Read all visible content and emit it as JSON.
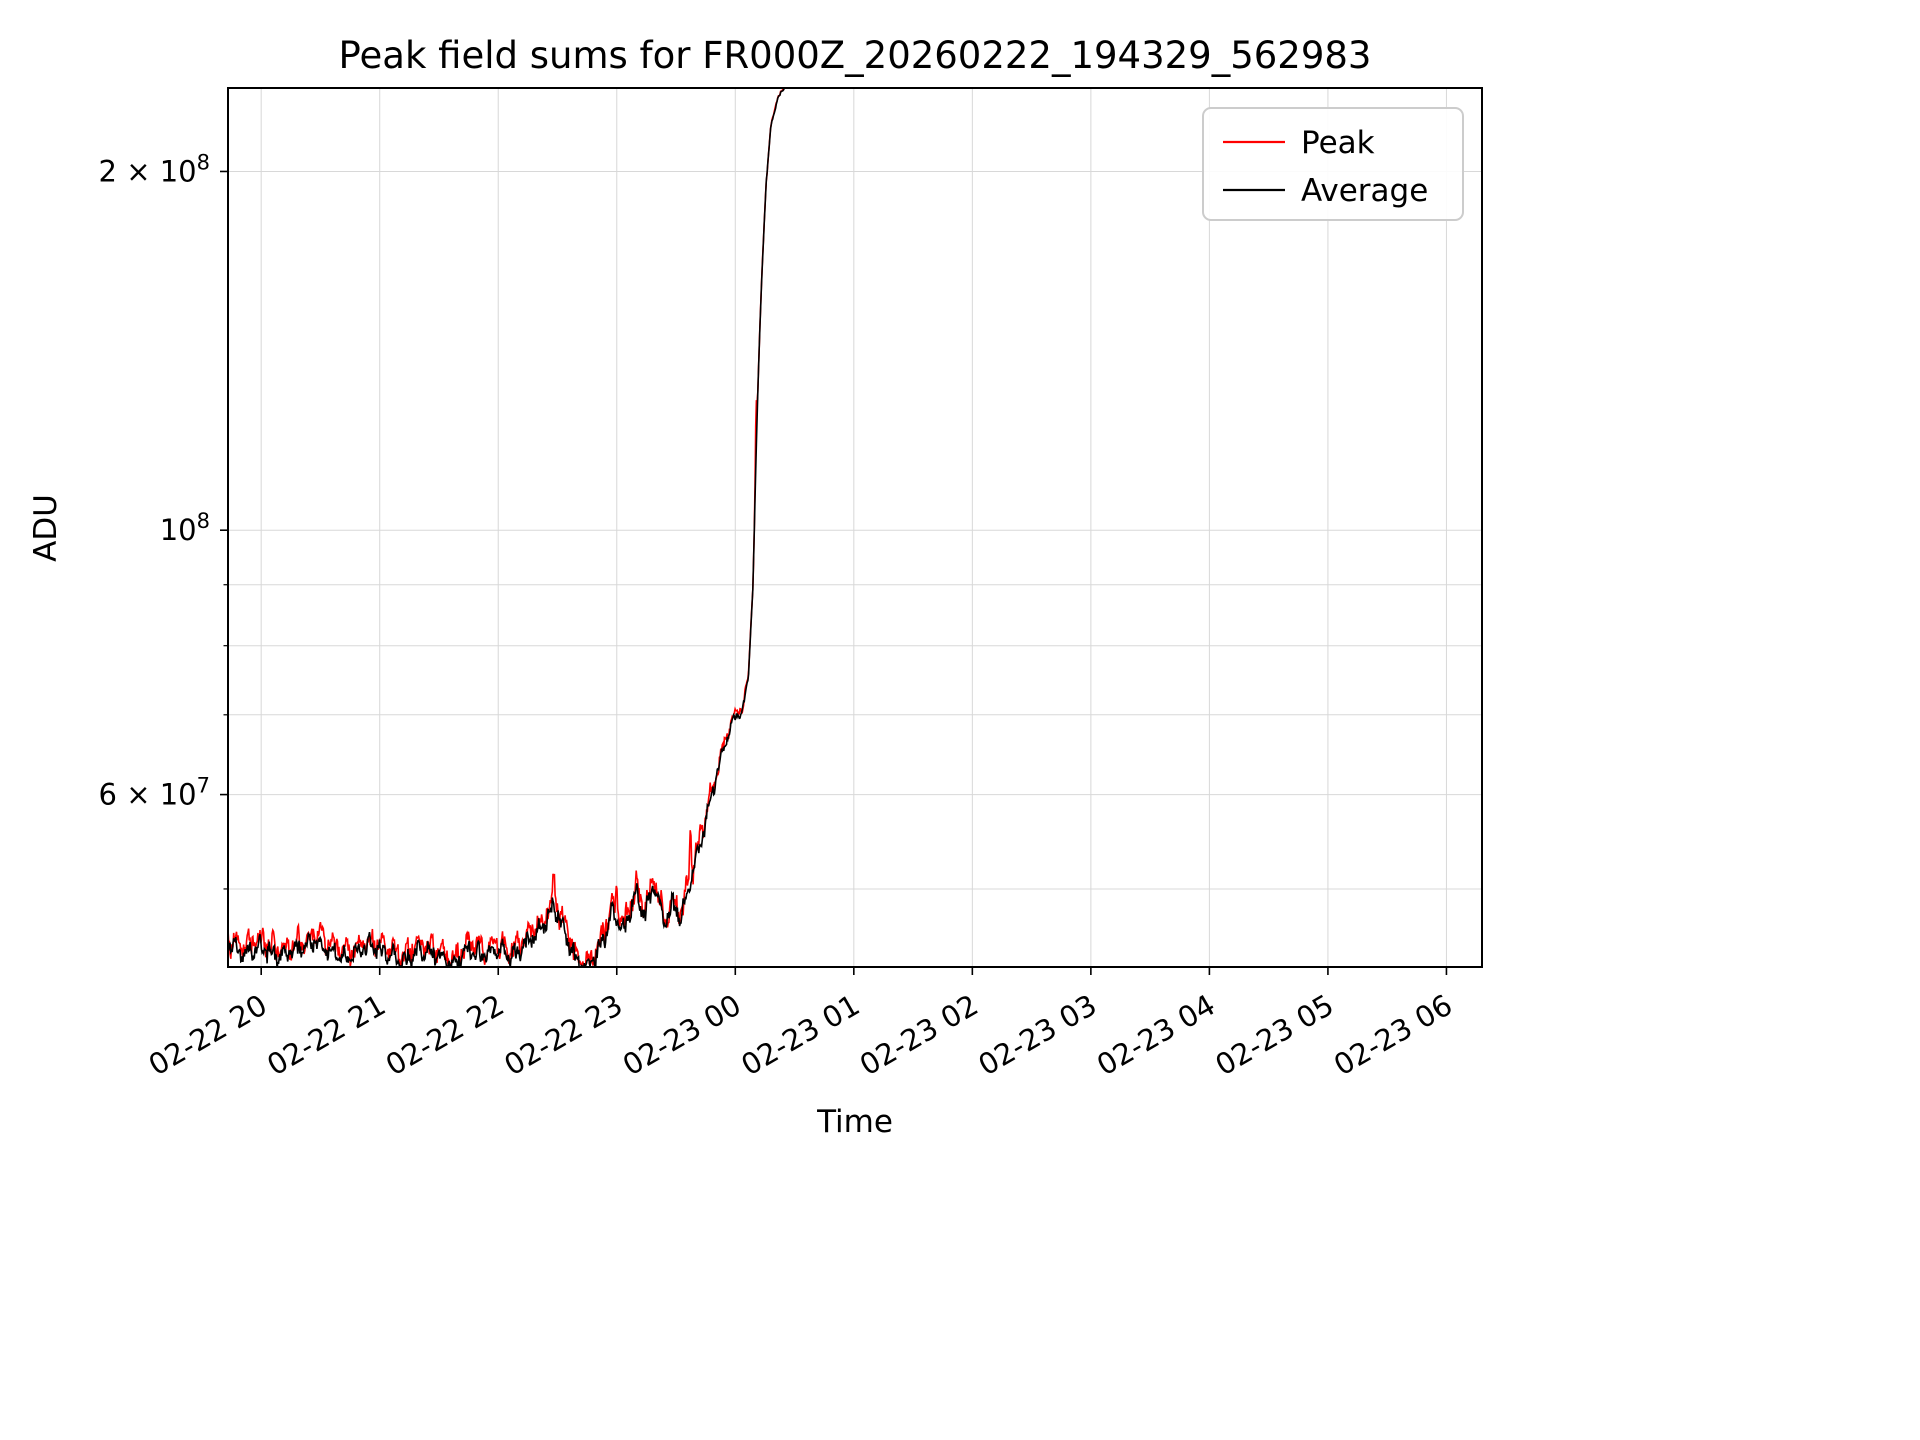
{
  "page": {
    "background": "#ffffff"
  },
  "chart_data": {
    "type": "line",
    "title": "Peak field sums for FR000Z_20260222_194329_562983",
    "xlabel": "Time",
    "ylabel": "ADU",
    "x_axis": {
      "lim": [
        19.72,
        30.3
      ],
      "ticks": [
        {
          "value": 20,
          "label": "02-22 20"
        },
        {
          "value": 21,
          "label": "02-22 21"
        },
        {
          "value": 22,
          "label": "02-22 22"
        },
        {
          "value": 23,
          "label": "02-22 23"
        },
        {
          "value": 24,
          "label": "02-23 00"
        },
        {
          "value": 25,
          "label": "02-23 01"
        },
        {
          "value": 26,
          "label": "02-23 02"
        },
        {
          "value": 27,
          "label": "02-23 03"
        },
        {
          "value": 28,
          "label": "02-23 04"
        },
        {
          "value": 29,
          "label": "02-23 05"
        },
        {
          "value": 30,
          "label": "02-23 06"
        }
      ]
    },
    "y_axis": {
      "scale": "log",
      "lim": [
        43000000.0,
        235000000.0
      ],
      "major_ticks": [
        {
          "value": 60000000.0,
          "mantissa": "6 × 10",
          "exp": "7"
        },
        {
          "value": 100000000.0,
          "mantissa": "10",
          "exp": "8"
        },
        {
          "value": 200000000.0,
          "mantissa": "2 × 10",
          "exp": "8"
        }
      ],
      "minor_ticks": [
        50000000.0,
        70000000.0,
        80000000.0,
        90000000.0
      ]
    },
    "grid": {
      "color": "#d8d8d8"
    },
    "legend": {
      "entries": [
        {
          "label": "Peak",
          "color": "#ff0000"
        },
        {
          "label": "Average",
          "color": "#000000"
        }
      ]
    },
    "series": {
      "average": {
        "name": "Average",
        "color": "#000000",
        "anchors": [
          [
            19.72,
            45000000.0
          ],
          [
            19.85,
            44200000.0
          ],
          [
            20.0,
            44800000.0
          ],
          [
            20.15,
            43800000.0
          ],
          [
            20.3,
            44500000.0
          ],
          [
            20.45,
            45200000.0
          ],
          [
            20.6,
            44200000.0
          ],
          [
            20.75,
            43800000.0
          ],
          [
            20.9,
            44800000.0
          ],
          [
            21.05,
            44200000.0
          ],
          [
            21.2,
            43500000.0
          ],
          [
            21.35,
            44500000.0
          ],
          [
            21.5,
            43800000.0
          ],
          [
            21.62,
            43000000.0
          ],
          [
            21.75,
            44500000.0
          ],
          [
            21.88,
            44000000.0
          ],
          [
            22.0,
            44600000.0
          ],
          [
            22.12,
            43800000.0
          ],
          [
            22.25,
            45200000.0
          ],
          [
            22.38,
            46500000.0
          ],
          [
            22.47,
            48500000.0
          ],
          [
            22.56,
            46000000.0
          ],
          [
            22.66,
            43500000.0
          ],
          [
            22.76,
            42800000.0
          ],
          [
            22.86,
            44500000.0
          ],
          [
            22.96,
            47800000.0
          ],
          [
            23.06,
            46000000.0
          ],
          [
            23.16,
            49500000.0
          ],
          [
            23.24,
            47800000.0
          ],
          [
            23.32,
            50500000.0
          ],
          [
            23.4,
            46500000.0
          ],
          [
            23.47,
            48500000.0
          ],
          [
            23.54,
            47200000.0
          ],
          [
            23.62,
            50500000.0
          ],
          [
            23.72,
            55500000.0
          ],
          [
            23.82,
            61000000.0
          ],
          [
            23.92,
            66500000.0
          ],
          [
            23.99,
            69500000.0
          ],
          [
            24.06,
            70500000.0
          ],
          [
            24.11,
            75000000.0
          ],
          [
            24.15,
            90000000.0
          ],
          [
            24.18,
            120000000.0
          ],
          [
            24.22,
            160000000.0
          ],
          [
            24.26,
            195000000.0
          ],
          [
            24.3,
            218000000.0
          ],
          [
            24.36,
            231000000.0
          ],
          [
            24.45,
            237000000.0
          ],
          [
            24.6,
            240000000.0
          ],
          [
            30.0,
            240000000.0
          ]
        ]
      },
      "peak": {
        "name": "Peak",
        "color": "#ff0000",
        "offset": 0.012,
        "spikes": [
          [
            20.5,
            1.03,
            0.012
          ],
          [
            22.47,
            1.04,
            0.012
          ],
          [
            23.0,
            1.04,
            0.012
          ],
          [
            23.62,
            1.1,
            0.01
          ],
          [
            24.175,
            1.1,
            0.008
          ]
        ]
      }
    },
    "noise": {
      "rel_amp": 0.02,
      "peak_amp_scale": 1.25,
      "freqs": [
        61.3,
        149.7,
        293.1
      ],
      "phases_avg": [
        1.7,
        0.4,
        2.9
      ],
      "phases_peak": [
        0.9,
        2.1,
        4.4
      ],
      "jitter": 0.6,
      "seed": 42,
      "taper": {
        "start": 52000000.0,
        "end": 80000000.0,
        "min": 0.12
      },
      "dt": 0.006,
      "t_end_dense": 24.8,
      "t_end": 30.0
    }
  }
}
